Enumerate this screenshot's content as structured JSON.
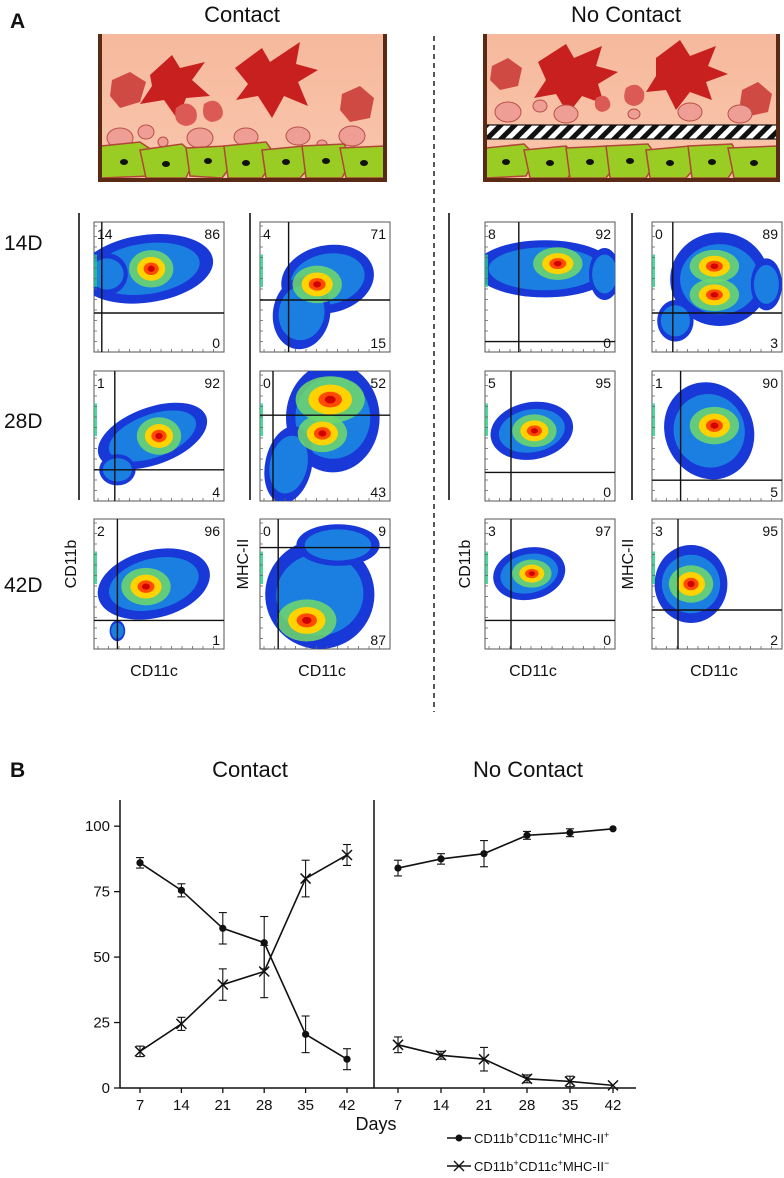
{
  "panel_a": {
    "label": "A",
    "conditions": [
      "Contact",
      "No Contact"
    ],
    "timepoints": [
      "14D",
      "28D",
      "42D"
    ],
    "axis_labels": {
      "cd11b": "CD11b",
      "mhc": "MHC-II",
      "cd11c": "CD11c"
    },
    "plots": {
      "contact_cd11b": [
        {
          "tl": "14",
          "tr": "86",
          "br": "0"
        },
        {
          "tl": "1",
          "tr": "92",
          "br": "4"
        },
        {
          "tl": "2",
          "tr": "96",
          "br": "1"
        }
      ],
      "contact_mhc": [
        {
          "tl": "4",
          "tr": "71",
          "br": "15"
        },
        {
          "tl": "0",
          "tr": "52",
          "br": "43"
        },
        {
          "tl": "0",
          "tr": "9",
          "br": "87"
        }
      ],
      "nocontact_cd11b": [
        {
          "tl": "8",
          "tr": "92",
          "br": "0"
        },
        {
          "tl": "5",
          "tr": "95",
          "br": "0"
        },
        {
          "tl": "3",
          "tr": "97",
          "br": "0"
        }
      ],
      "nocontact_mhc": [
        {
          "tl": "0",
          "tr": "89",
          "br": "3"
        },
        {
          "tl": "1",
          "tr": "90",
          "br": "5"
        },
        {
          "tl": "3",
          "tr": "95",
          "br": "2"
        }
      ]
    }
  },
  "chart_data": {
    "type": "line",
    "panel_label": "B",
    "panel_titles": [
      "Contact",
      "No Contact"
    ],
    "xlabel": "Days",
    "ylabel": "",
    "x": [
      7,
      14,
      21,
      28,
      35,
      42
    ],
    "ylim": [
      0,
      110
    ],
    "yticks": [
      0,
      25,
      50,
      75,
      100
    ],
    "series": [
      {
        "name": "CD11b+CD11c+MHC-II+",
        "legend_main": "CD11b",
        "legend_sup1": "+",
        "legend_mid": "CD11c",
        "legend_sup2": "+",
        "legend_end": "MHC-II",
        "legend_sup3": "+",
        "marker": "dot",
        "panel": "Contact",
        "values": [
          86,
          75.5,
          61,
          55.5,
          20.5,
          11
        ],
        "errors": [
          2,
          2.5,
          6,
          10,
          7,
          4
        ]
      },
      {
        "name": "CD11b+CD11c+MHC-II-",
        "legend_main": "CD11b",
        "legend_sup1": "+",
        "legend_mid": "CD11c",
        "legend_sup2": "+",
        "legend_end": "MHC-II",
        "legend_sup3": "−",
        "marker": "x",
        "panel": "Contact",
        "values": [
          14,
          24.5,
          39.5,
          44.5,
          80,
          89
        ],
        "errors": [
          2,
          2.5,
          6,
          10,
          7,
          4
        ]
      },
      {
        "name": "CD11b+CD11c+MHC-II+",
        "marker": "dot",
        "panel": "No Contact",
        "values": [
          84,
          87.5,
          89.5,
          96.5,
          97.5,
          99
        ],
        "errors": [
          3,
          2,
          5,
          1.5,
          1.5,
          0.5
        ]
      },
      {
        "name": "CD11b+CD11c+MHC-II-",
        "marker": "x",
        "panel": "No Contact",
        "values": [
          16.5,
          12.5,
          11,
          3.5,
          2.5,
          1
        ],
        "errors": [
          3,
          1.5,
          4.5,
          1.5,
          2,
          0.5
        ]
      }
    ]
  }
}
